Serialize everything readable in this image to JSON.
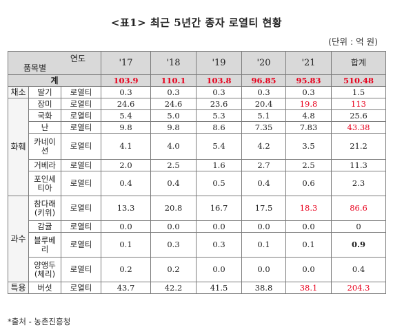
{
  "title": "<표1> 최근 5년간 종자 로열티 현황",
  "unit": "(단위 : 억 원)",
  "source": "*출처 - 농촌진흥청",
  "header": {
    "diag_top": "연도",
    "diag_bottom": "품목별",
    "years": [
      "'17",
      "'18",
      "'19",
      "'20",
      "'21"
    ],
    "total_label": "합계"
  },
  "total_row": {
    "label": "계",
    "values": [
      "103.9",
      "110.1",
      "103.8",
      "96.85",
      "95.83",
      "510.48"
    ]
  },
  "rows": [
    {
      "cat": "채소",
      "item": "딸기",
      "type": "로열티",
      "values": [
        "0.3",
        "0.3",
        "0.3",
        "0.3",
        "0.3",
        "1.5"
      ]
    },
    {
      "cat": "화훼",
      "item": "장미",
      "type": "로열티",
      "values": [
        "24.6",
        "24.6",
        "23.6",
        "20.4",
        "19.8",
        "113"
      ]
    },
    {
      "item": "국화",
      "type": "로열티",
      "values": [
        "5.4",
        "5.0",
        "5.3",
        "5.1",
        "4.8",
        "25.6"
      ]
    },
    {
      "item": "난",
      "type": "로열티",
      "values": [
        "9.8",
        "9.8",
        "8.6",
        "7.35",
        "7.83",
        "43.38"
      ]
    },
    {
      "item": "카네이션",
      "type": "로열티",
      "values": [
        "4.1",
        "4.0",
        "5.4",
        "4.2",
        "3.5",
        "21.2"
      ]
    },
    {
      "item": "거베라",
      "type": "로열티",
      "values": [
        "2.0",
        "2.5",
        "1.6",
        "2.7",
        "2.5",
        "11.3"
      ]
    },
    {
      "item": "포인세티아",
      "type": "로열티",
      "values": [
        "0.4",
        "0.4",
        "0.5",
        "0.4",
        "0.6",
        "2.3"
      ]
    },
    {
      "cat": "과수",
      "item": "참다래(키위)",
      "type": "로열티",
      "values": [
        "13.3",
        "20.8",
        "16.7",
        "17.5",
        "18.3",
        "86.6"
      ]
    },
    {
      "item": "감귤",
      "type": "로열티",
      "values": [
        "0.0",
        "0.0",
        "0.0",
        "0.0",
        "0.0",
        "0"
      ]
    },
    {
      "item": "블루베리",
      "type": "로열티",
      "values": [
        "0.1",
        "0.3",
        "0.3",
        "0.1",
        "0.1",
        "0.9"
      ]
    },
    {
      "item": "양앵두(체리)",
      "type": "로열티",
      "values": [
        "0.2",
        "0.2",
        "0.0",
        "0.0",
        "0.0",
        "0.4"
      ]
    },
    {
      "cat": "특용",
      "item": "버섯",
      "type": "로열티",
      "values": [
        "43.7",
        "42.2",
        "41.5",
        "38.8",
        "38.1",
        "204.3"
      ]
    }
  ],
  "colors": {
    "highlight": "#e8001c",
    "header_bg": "#d9d9d9"
  }
}
